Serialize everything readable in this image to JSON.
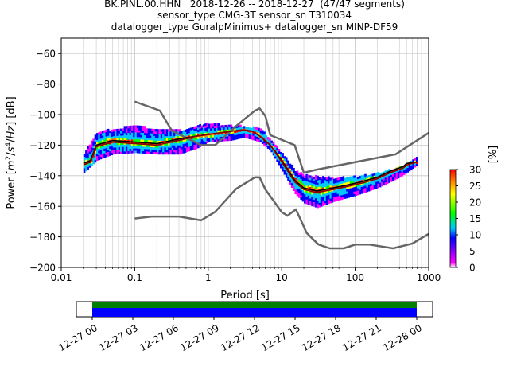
{
  "title_lines": [
    "BK.PINL.00.HHN   2018-12-26 -- 2018-12-27  (47/47 segments)",
    "sensor_type CMG-3T sensor_sn T310034",
    "datalogger_type GuralpMinimus+ datalogger_sn MINP-DF59"
  ],
  "chart_data": {
    "type": "heatmap",
    "xlabel": "Period [s]",
    "ylabel_parts": [
      "Power [",
      "m",
      "2",
      "/",
      "s",
      "4",
      "/",
      "Hz",
      "] [dB]"
    ],
    "x_scale": "log",
    "xlim": [
      0.01,
      1000
    ],
    "ylim": [
      -200,
      -50
    ],
    "x_ticks": [
      0.01,
      0.1,
      1,
      10,
      100,
      1000
    ],
    "x_tick_labels": [
      "0.01",
      "0.1",
      "1",
      "10",
      "100",
      "1000"
    ],
    "y_ticks": [
      -200,
      -180,
      -160,
      -140,
      -120,
      -100,
      -80,
      -60
    ],
    "y_tick_labels": [
      "−200",
      "−180",
      "−160",
      "−140",
      "−120",
      "−100",
      "−80",
      "−60"
    ],
    "grid": true,
    "colorbar": {
      "label": "[%]",
      "range": [
        0,
        30
      ],
      "ticks": [
        0,
        5,
        10,
        15,
        20,
        25,
        30
      ],
      "tick_labels": [
        "0",
        "5",
        "10",
        "15",
        "20",
        "25",
        "30"
      ],
      "colors": [
        "#ffffff",
        "#ff00ff",
        "#0000ff",
        "#00c8ff",
        "#00ff00",
        "#ffff00",
        "#ff8000",
        "#ff0000"
      ]
    },
    "series": [
      {
        "role": "noise-model-high",
        "color": "#666666",
        "points": [
          [
            0.1,
            -91.5
          ],
          [
            0.22,
            -97.4
          ],
          [
            0.32,
            -110.5
          ],
          [
            0.8,
            -120
          ],
          [
            1.24,
            -120
          ],
          [
            2.4,
            -107.5
          ],
          [
            4.3,
            -97.5
          ],
          [
            5.0,
            -96
          ],
          [
            6.0,
            -101
          ],
          [
            7.0,
            -113.5
          ],
          [
            15,
            -120
          ],
          [
            20,
            -138
          ],
          [
            30,
            -136
          ],
          [
            354,
            -126
          ],
          [
            1000,
            -112
          ]
        ]
      },
      {
        "role": "noise-model-low",
        "color": "#666666",
        "points": [
          [
            0.1,
            -168
          ],
          [
            0.17,
            -166.7
          ],
          [
            0.4,
            -166.7
          ],
          [
            0.8,
            -169.2
          ],
          [
            1.24,
            -163.7
          ],
          [
            2.4,
            -148.6
          ],
          [
            4.3,
            -141.1
          ],
          [
            5.0,
            -141.1
          ],
          [
            6.0,
            -149
          ],
          [
            10,
            -163.8
          ],
          [
            12,
            -166.2
          ],
          [
            15.6,
            -162
          ],
          [
            21.9,
            -177.5
          ],
          [
            31.6,
            -185
          ],
          [
            45,
            -187.5
          ],
          [
            70,
            -187.5
          ],
          [
            101,
            -185
          ],
          [
            154,
            -185
          ],
          [
            328,
            -187.5
          ],
          [
            600,
            -184.4
          ],
          [
            1000,
            -178
          ]
        ]
      },
      {
        "role": "mean-psd",
        "color": "#000000",
        "points": [
          [
            0.02,
            -132
          ],
          [
            0.025,
            -130
          ],
          [
            0.03,
            -120
          ],
          [
            0.05,
            -117
          ],
          [
            0.1,
            -118
          ],
          [
            0.2,
            -119
          ],
          [
            0.4,
            -116
          ],
          [
            0.7,
            -114
          ],
          [
            1,
            -113
          ],
          [
            2,
            -111
          ],
          [
            3,
            -110
          ],
          [
            4,
            -111
          ],
          [
            5,
            -114
          ],
          [
            7,
            -120
          ],
          [
            10,
            -130
          ],
          [
            15,
            -143
          ],
          [
            20,
            -148
          ],
          [
            30,
            -150
          ],
          [
            50,
            -148
          ],
          [
            80,
            -146
          ],
          [
            120,
            -144
          ],
          [
            200,
            -141
          ],
          [
            300,
            -137
          ],
          [
            450,
            -134
          ],
          [
            500,
            -132
          ],
          [
            700,
            -131
          ]
        ]
      },
      {
        "role": "mode-psd",
        "color": "#8b0000",
        "points": [
          [
            0.02,
            -133
          ],
          [
            0.025,
            -131
          ],
          [
            0.03,
            -121
          ],
          [
            0.05,
            -118
          ],
          [
            0.1,
            -119
          ],
          [
            0.2,
            -120
          ],
          [
            0.4,
            -117
          ],
          [
            0.7,
            -114
          ],
          [
            1,
            -113
          ],
          [
            2,
            -111
          ],
          [
            3,
            -110
          ],
          [
            4,
            -111
          ],
          [
            5,
            -114
          ],
          [
            7,
            -120
          ],
          [
            10,
            -131
          ],
          [
            15,
            -144
          ],
          [
            20,
            -149
          ],
          [
            30,
            -151
          ],
          [
            50,
            -149
          ],
          [
            80,
            -147
          ],
          [
            120,
            -145
          ],
          [
            200,
            -142
          ],
          [
            300,
            -138
          ],
          [
            450,
            -135
          ],
          [
            500,
            -133
          ],
          [
            700,
            -131
          ]
        ]
      }
    ],
    "histogram_envelope": {
      "periods": [
        0.02,
        0.03,
        0.05,
        0.1,
        0.2,
        0.4,
        0.7,
        1,
        2,
        3,
        5,
        7,
        10,
        15,
        20,
        30,
        50,
        100,
        200,
        400,
        700
      ],
      "upper_db": [
        -126,
        -112,
        -110,
        -108,
        -110,
        -111,
        -108,
        -106,
        -108,
        -108,
        -110,
        -117,
        -126,
        -137,
        -140,
        -141,
        -142,
        -141,
        -139,
        -135,
        -128
      ],
      "lower_db": [
        -138,
        -130,
        -126,
        -125,
        -126,
        -126,
        -122,
        -118,
        -117,
        -115,
        -118,
        -124,
        -137,
        -152,
        -158,
        -161,
        -157,
        -153,
        -148,
        -141,
        -133
      ]
    },
    "timeline": {
      "tick_labels": [
        "12-27 00",
        "12-27 03",
        "12-27 06",
        "12-27 09",
        "12-27 12",
        "12-27 15",
        "12-27 18",
        "12-27 21",
        "12-28 00"
      ],
      "bars": [
        {
          "role": "data-available",
          "color": "#008000"
        },
        {
          "role": "data-used",
          "color": "#0000ff"
        }
      ]
    }
  }
}
